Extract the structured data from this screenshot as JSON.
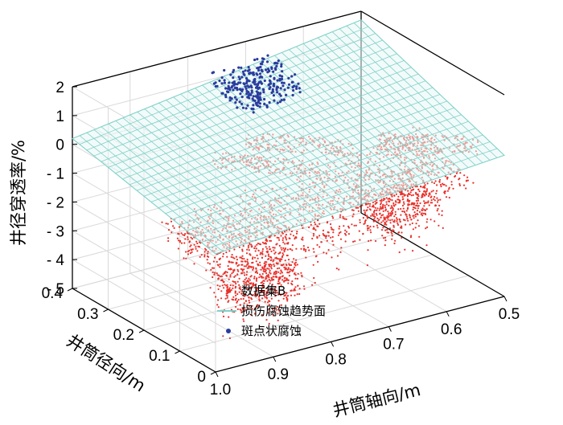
{
  "chart_data": {
    "type": "scatter3d",
    "zlabel": "井径穿透率/%",
    "ylabel": "井筒径向/m",
    "xlabel": "井筒轴向/m",
    "zlim": [
      -5,
      2
    ],
    "zticks": [
      "2",
      "1",
      "0",
      "- 1",
      "- 2",
      "- 3",
      "- 4",
      "- 5"
    ],
    "yticks": [
      "0.4",
      "0.3",
      "0.2",
      "0.1",
      "0"
    ],
    "xticks": [
      "1.0",
      "0.9",
      "0.8",
      "0.7",
      "0.6",
      "0.5"
    ],
    "xlim": [
      0.5,
      1.0
    ],
    "ylim": [
      0,
      0.4
    ],
    "grid": true,
    "legend_position": "bottom-center",
    "series": [
      {
        "name": "数据集B",
        "kind": "scatter",
        "color": "#e8322c"
      },
      {
        "name": "损伤腐蚀趋势面",
        "kind": "surface",
        "color": "#7fd0c8"
      },
      {
        "name": "斑点状腐蚀",
        "kind": "scatter",
        "color": "#2b3c9e"
      }
    ],
    "trend_surface": {
      "description_free": true,
      "corners": [
        {
          "x": 1.0,
          "y": 0.0,
          "z": -0.9
        },
        {
          "x": 0.5,
          "y": 0.0,
          "z": -0.1
        },
        {
          "x": 0.5,
          "y": 0.4,
          "z": 1.7
        },
        {
          "x": 1.0,
          "y": 0.4,
          "z": 0.2
        }
      ]
    },
    "pitting_cluster": {
      "x_range": [
        0.66,
        0.76
      ],
      "y_range": [
        0.3,
        0.4
      ],
      "z_range": [
        0.3,
        1.6
      ]
    }
  }
}
